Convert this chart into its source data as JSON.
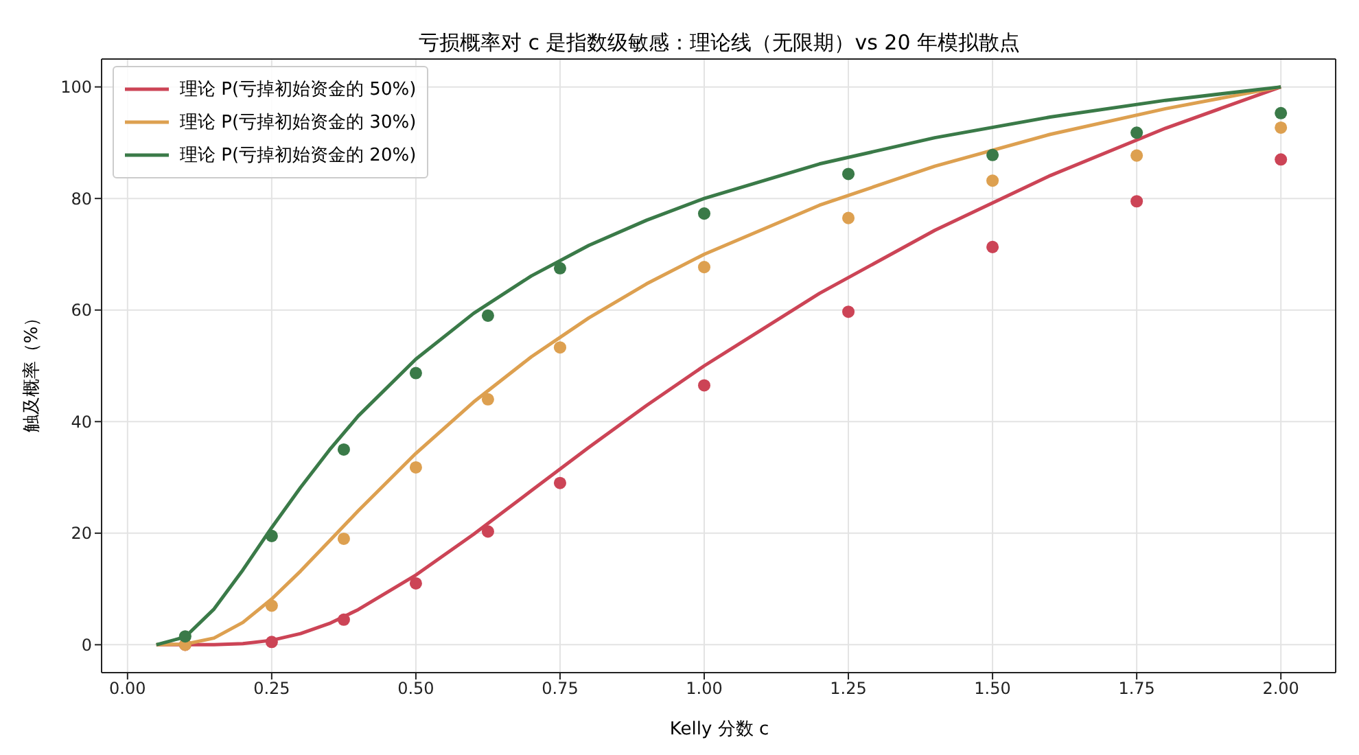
{
  "chart_data": {
    "type": "line",
    "title": "亏损概率对 c 是指数级敏感：理论线（无限期）vs 20 年模拟散点",
    "xlabel": "Kelly 分数 c",
    "ylabel": "触及概率（%）",
    "xlim": [
      -0.045,
      2.095
    ],
    "xticks": [
      {
        "value": 0,
        "label": "0.00"
      },
      {
        "value": 0.25,
        "label": "0.25"
      },
      {
        "value": 0.5,
        "label": "0.50"
      },
      {
        "value": 0.75,
        "label": "0.75"
      },
      {
        "value": 1,
        "label": "1.00"
      },
      {
        "value": 1.25,
        "label": "1.25"
      },
      {
        "value": 1.5,
        "label": "1.50"
      },
      {
        "value": 1.75,
        "label": "1.75"
      },
      {
        "value": 2,
        "label": "2.00"
      }
    ],
    "ylim": [
      -5,
      105
    ],
    "yticks": [
      0,
      20,
      40,
      60,
      80,
      100
    ],
    "grid": true,
    "legend": "top left",
    "marker": "none",
    "line_style": "solid",
    "series": [
      {
        "name": "理论 P(亏掉初始资金的 50%)",
        "color": "#cc4456",
        "x": [
          0.05,
          0.1,
          0.15,
          0.2,
          0.25,
          0.3,
          0.35,
          0.4,
          0.5,
          0.6,
          0.7,
          0.8,
          0.9,
          1.0,
          1.2,
          1.4,
          1.6,
          1.8,
          2.0
        ],
        "values": [
          0,
          0,
          0,
          0.2,
          0.8,
          2.0,
          3.8,
          6.3,
          12.5,
          19.8,
          27.6,
          35.4,
          42.9,
          50,
          63.0,
          74.3,
          84.1,
          92.6,
          100
        ]
      },
      {
        "name": "理论 P(亏掉初始资金的 30%)",
        "color": "#dda050",
        "x": [
          0.05,
          0.1,
          0.15,
          0.2,
          0.25,
          0.3,
          0.35,
          0.4,
          0.5,
          0.6,
          0.7,
          0.8,
          0.9,
          1.0,
          1.2,
          1.4,
          1.6,
          1.8,
          2.0
        ],
        "values": [
          0,
          0.1,
          1.2,
          4.0,
          8.2,
          13.2,
          18.6,
          24.0,
          34.3,
          43.5,
          51.6,
          58.6,
          64.7,
          70,
          78.8,
          85.8,
          91.5,
          96.1,
          100
        ]
      },
      {
        "name": "理论 P(亏掉初始资金的 20%)",
        "color": "#3a7a48",
        "x": [
          0.05,
          0.1,
          0.15,
          0.2,
          0.25,
          0.3,
          0.35,
          0.4,
          0.5,
          0.6,
          0.7,
          0.8,
          0.9,
          1.0,
          1.2,
          1.4,
          1.6,
          1.8,
          2.0
        ],
        "values": [
          0,
          1.4,
          6.4,
          13.4,
          21.0,
          28.2,
          34.9,
          41.0,
          51.2,
          59.4,
          66.1,
          71.6,
          76.1,
          80,
          86.2,
          90.9,
          94.6,
          97.6,
          100
        ]
      },
      {
        "type": "scatter",
        "marker": "circle",
        "color": "#cc4456",
        "x": [
          0.1,
          0.25,
          0.375,
          0.5,
          0.625,
          0.75,
          1,
          1.25,
          1.5,
          1.75,
          2
        ],
        "values": [
          0,
          0.5,
          4.5,
          11,
          20.3,
          29,
          46.5,
          59.7,
          71.3,
          79.5,
          87
        ]
      },
      {
        "type": "scatter",
        "marker": "circle",
        "color": "#dda050",
        "x": [
          0.1,
          0.25,
          0.375,
          0.5,
          0.625,
          0.75,
          1,
          1.25,
          1.5,
          1.75,
          2
        ],
        "values": [
          0,
          7,
          19,
          31.8,
          44,
          53.3,
          67.7,
          76.5,
          83.2,
          87.7,
          92.7
        ]
      },
      {
        "type": "scatter",
        "marker": "circle",
        "color": "#3a7a48",
        "x": [
          0.1,
          0.25,
          0.375,
          0.5,
          0.625,
          0.75,
          1,
          1.25,
          1.5,
          1.75,
          2
        ],
        "values": [
          1.5,
          19.5,
          35,
          48.7,
          59,
          67.5,
          77.3,
          84.4,
          87.8,
          91.8,
          95.3
        ]
      }
    ]
  }
}
